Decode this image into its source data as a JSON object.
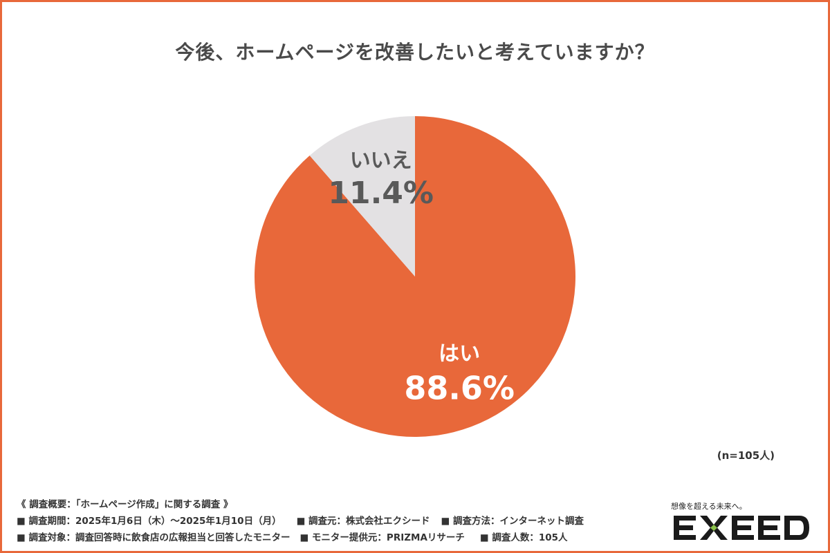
{
  "title": "今後、ホームページを改善したいと考えていますか？",
  "colors": {
    "accent": "#e8683a",
    "no_slice": "#e3e1e3",
    "yes_text": "#ffffff",
    "no_text": "#595959",
    "logo_green": "#8bc34a"
  },
  "chart_data": {
    "type": "pie",
    "categories": [
      "はい",
      "いいえ"
    ],
    "values": [
      88.6,
      11.4
    ],
    "value_labels": [
      "88.6%",
      "11.4%"
    ],
    "unit": "%"
  },
  "sample_note": "(n=105人)",
  "survey": {
    "heading": "《 調査概要：「ホームページ作成」に関する調査 》",
    "period": "■ 調査期間：2025年1月6日（木）〜2025年1月10日（月）",
    "source": "■ 調査元：株式会社エクシード",
    "method": "■ 調査方法：インターネット調査",
    "target": "■ 調査対象：調査回答時に飲食店の広報担当と回答したモニター",
    "provider": "■ モニター提供元：PRIZMAリサーチ",
    "count": "■ 調査人数：105人"
  },
  "logo": {
    "tagline": "想像を超える未来へ。",
    "brand": "EXEED"
  }
}
